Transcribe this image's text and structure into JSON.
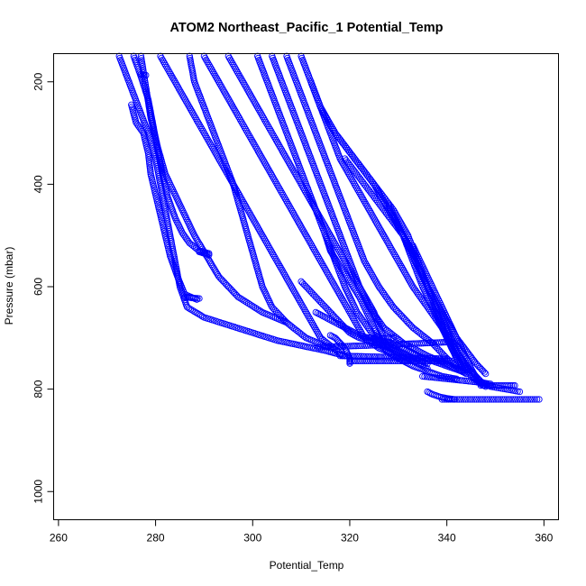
{
  "chart_data": {
    "type": "scatter",
    "title": "ATOM2 Northeast_Pacific_1 Potential_Temp",
    "xlabel": "Potential_Temp",
    "ylabel": "Pressure (mbar)",
    "xlim": [
      259,
      363
    ],
    "ylim": [
      1055,
      145
    ],
    "y_reversed": true,
    "x_ticks": [
      260,
      280,
      300,
      320,
      340,
      360
    ],
    "y_ticks": [
      200,
      400,
      600,
      800,
      1000
    ],
    "grid": false,
    "marker": "open-circle",
    "point_color": "#0000ff",
    "series": [
      {
        "x": [
          272.5,
          274.5,
          276.5,
          278.5,
          280.0,
          281.0,
          282.0,
          283.0,
          284.0,
          285.0,
          286.5,
          290.0,
          295.0,
          300.0,
          305.0,
          310.0,
          315.0,
          319.0
        ],
        "y": [
          150,
          200,
          250,
          300,
          350,
          400,
          450,
          500,
          550,
          600,
          640,
          660,
          675,
          690,
          705,
          715,
          725,
          735
        ]
      },
      {
        "x": [
          275.0,
          276.0,
          277.5,
          278.5,
          279.0,
          280.0,
          281.0,
          282.0,
          283.0,
          284.5,
          286.0,
          288.5
        ],
        "y": [
          245,
          280,
          300,
          340,
          380,
          420,
          460,
          500,
          540,
          580,
          615,
          625
        ]
      },
      {
        "x": [
          275.5,
          277.0,
          278.5,
          279.5,
          280.5,
          281.5,
          282.5,
          284.0,
          285.5,
          287.0,
          289.0,
          291.0
        ],
        "y": [
          150,
          190,
          235,
          285,
          335,
          385,
          425,
          465,
          495,
          515,
          530,
          535
        ]
      },
      {
        "x": [
          277.0,
          278.0,
          279.0,
          280.5,
          282.0,
          284.0,
          286.0,
          288.0,
          290.5,
          293.0,
          297.0,
          302.0,
          307.0
        ],
        "y": [
          150,
          210,
          270,
          330,
          380,
          420,
          460,
          500,
          540,
          580,
          620,
          650,
          670
        ]
      },
      {
        "x": [
          281.0,
          284.0,
          287.0,
          290.0,
          293.0,
          296.0,
          299.0,
          302.0,
          305.0,
          308.0,
          311.0,
          314.0,
          318.0
        ],
        "y": [
          150,
          200,
          250,
          300,
          350,
          400,
          450,
          500,
          550,
          600,
          650,
          700,
          730
        ]
      },
      {
        "x": [
          287.0,
          288.0,
          290.0,
          292.0,
          294.0,
          296.0,
          297.5,
          299.0,
          300.5,
          302.0,
          304.0,
          307.0,
          311.0,
          316.0
        ],
        "y": [
          150,
          200,
          250,
          300,
          350,
          400,
          450,
          500,
          550,
          600,
          640,
          670,
          700,
          720
        ]
      },
      {
        "x": [
          290.0,
          293.0,
          296.0,
          299.0,
          302.0,
          305.0,
          308.0,
          311.0,
          314.0,
          317.0,
          320.0,
          323.0,
          326.0,
          330.0
        ],
        "y": [
          150,
          200,
          250,
          300,
          350,
          400,
          450,
          500,
          550,
          600,
          650,
          700,
          720,
          735
        ]
      },
      {
        "x": [
          295.0,
          298.0,
          301.0,
          304.0,
          307.0,
          310.0,
          313.0,
          316.0,
          319.0,
          322.0,
          325.0,
          327.0
        ],
        "y": [
          150,
          200,
          250,
          300,
          350,
          400,
          450,
          500,
          550,
          600,
          650,
          700
        ]
      },
      {
        "x": [
          301.0,
          303.0,
          305.0,
          307.0,
          309.0,
          311.0,
          313.0,
          315.0,
          317.0,
          319.0,
          321.5,
          324.5,
          328.0,
          332.0,
          336.0
        ],
        "y": [
          150,
          200,
          250,
          300,
          350,
          400,
          450,
          500,
          550,
          600,
          650,
          690,
          715,
          735,
          750
        ]
      },
      {
        "x": [
          304.0,
          306.0,
          308.0,
          310.0,
          312.0,
          314.0,
          316.0,
          318.0,
          320.0,
          322.0,
          324.0,
          327.0,
          331.0,
          336.0,
          341.0,
          344.0
        ],
        "y": [
          150,
          200,
          250,
          300,
          350,
          400,
          450,
          500,
          550,
          600,
          640,
          680,
          710,
          735,
          755,
          770
        ]
      },
      {
        "x": [
          307.0,
          309.0,
          311.0,
          313.0,
          315.0,
          317.0,
          319.0,
          321.0,
          323.0,
          326.0,
          329.0,
          333.0,
          337.0,
          340.0,
          343.0
        ],
        "y": [
          150,
          200,
          250,
          300,
          350,
          400,
          450,
          500,
          550,
          600,
          640,
          680,
          710,
          740,
          765
        ]
      },
      {
        "x": [
          310.0,
          312.0,
          314.0,
          316.0,
          318.0,
          321.0,
          324.0,
          327.0,
          330.0,
          333.0,
          336.0,
          339.0,
          341.0,
          343.0,
          345.0,
          347.0
        ],
        "y": [
          150,
          200,
          250,
          300,
          350,
          400,
          450,
          500,
          550,
          600,
          640,
          680,
          720,
          750,
          775,
          790
        ]
      },
      {
        "x": [
          312.0,
          314.0,
          317.0,
          321.0,
          325.0,
          328.0,
          331.0,
          333.0,
          335.0,
          337.0,
          339.0,
          341.0,
          343.0,
          345.0,
          347.0,
          349.0,
          352.0,
          355.0
        ],
        "y": [
          200,
          250,
          300,
          350,
          400,
          450,
          500,
          550,
          600,
          640,
          680,
          710,
          740,
          765,
          785,
          795,
          800,
          805
        ]
      },
      {
        "x": [
          314.0,
          317.0,
          321.0,
          325.0,
          329.0,
          332.0,
          334.0,
          336.0,
          338.0,
          340.0,
          342.0,
          344.0
        ],
        "y": [
          250,
          300,
          350,
          400,
          450,
          500,
          550,
          600,
          650,
          700,
          740,
          770
        ]
      },
      {
        "x": [
          319.0,
          323.0,
          327.0,
          331.0,
          334.0,
          336.0,
          338.0,
          340.0,
          342.0,
          344.0,
          346.0,
          348.0
        ],
        "y": [
          350,
          400,
          450,
          500,
          550,
          600,
          650,
          690,
          730,
          760,
          780,
          795
        ]
      },
      {
        "x": [
          315.0,
          316.0,
          318.0,
          320.0,
          322.0,
          323.5,
          325.0,
          326.0,
          327.0,
          329.0,
          331.0,
          333.0,
          336.0,
          339.0,
          342.0
        ],
        "y": [
          500,
          530,
          560,
          590,
          620,
          650,
          680,
          700,
          720,
          735,
          745,
          755,
          765,
          775,
          780
        ]
      },
      {
        "x": [
          310.0,
          313.0,
          316.0,
          318.0,
          320.0,
          322.0,
          324.0,
          327.0,
          330.0,
          333.0,
          336.0
        ],
        "y": [
          590,
          620,
          650,
          670,
          690,
          700,
          705,
          715,
          730,
          745,
          760
        ]
      },
      {
        "x": [
          313.0,
          316.0,
          319.0,
          321.0,
          323.0,
          325.5,
          328.0,
          331.0,
          334.0,
          337.0,
          340.0,
          343.0
        ],
        "y": [
          650,
          665,
          680,
          690,
          698,
          703,
          708,
          720,
          735,
          745,
          755,
          765
        ]
      },
      {
        "x": [
          328.0,
          329.0,
          330.0,
          331.0,
          332.0,
          333.0,
          334.0,
          335.0,
          336.0,
          337.5,
          339.0,
          340.5,
          342.0,
          344.0,
          346.0,
          348.0
        ],
        "y": [
          440,
          460,
          480,
          500,
          520,
          540,
          560,
          580,
          600,
          625,
          650,
          675,
          700,
          725,
          750,
          770
        ]
      },
      {
        "x": [
          333.0,
          334.5,
          336.0,
          337.5,
          339.0,
          340.5,
          342.0,
          343.5,
          345.0,
          346.5
        ],
        "y": [
          520,
          550,
          580,
          610,
          640,
          670,
          700,
          730,
          760,
          785
        ]
      },
      {
        "x": [
          316.0,
          317.0,
          318.0,
          319.0,
          319.5,
          320.0,
          320.0,
          320.0
        ],
        "y": [
          695,
          700,
          710,
          720,
          730,
          740,
          745,
          750
        ]
      },
      {
        "x": [
          313.5,
          320.0,
          326.0,
          331.0,
          336.0,
          341.0
        ],
        "y": [
          718,
          716,
          714,
          712,
          710,
          708
        ]
      },
      {
        "x": [
          318.0,
          322.0,
          326.0,
          329.5,
          333.0,
          337.0,
          340.0
        ],
        "y": [
          735,
          736,
          737,
          738,
          739,
          740,
          741
        ]
      },
      {
        "x": [
          320.0,
          323.0,
          326.0,
          329.0,
          333.0,
          337.0,
          341.0
        ],
        "y": [
          745,
          745,
          745,
          745,
          745,
          745,
          745
        ]
      },
      {
        "x": [
          324.0,
          326.5,
          329.0
        ],
        "y": [
          700,
          700,
          700
        ]
      },
      {
        "x": [
          335.0,
          338.0,
          341.0,
          344.0,
          347.0,
          349.0
        ],
        "y": [
          775,
          778,
          781,
          784,
          787,
          790
        ]
      },
      {
        "x": [
          336.0,
          337.0,
          338.5,
          340.0,
          341.5
        ],
        "y": [
          805,
          810,
          815,
          818,
          820
        ]
      },
      {
        "x": [
          339.0,
          343.0,
          347.0,
          351.0,
          355.0,
          359.0
        ],
        "y": [
          820,
          820,
          820,
          820,
          820,
          820
        ]
      },
      {
        "x": [
          347.0,
          349.0,
          351.0,
          353.0,
          354.0
        ],
        "y": [
          793,
          793,
          793,
          793,
          793
        ]
      },
      {
        "x": [
          289.0,
          290.0,
          291.0
        ],
        "y": [
          532,
          535,
          538
        ]
      },
      {
        "x": [
          286.0,
          287.5,
          289.0
        ],
        "y": [
          620,
          622,
          623
        ]
      },
      {
        "x": [
          277.0,
          278.0
        ],
        "y": [
          185,
          187
        ]
      }
    ]
  }
}
